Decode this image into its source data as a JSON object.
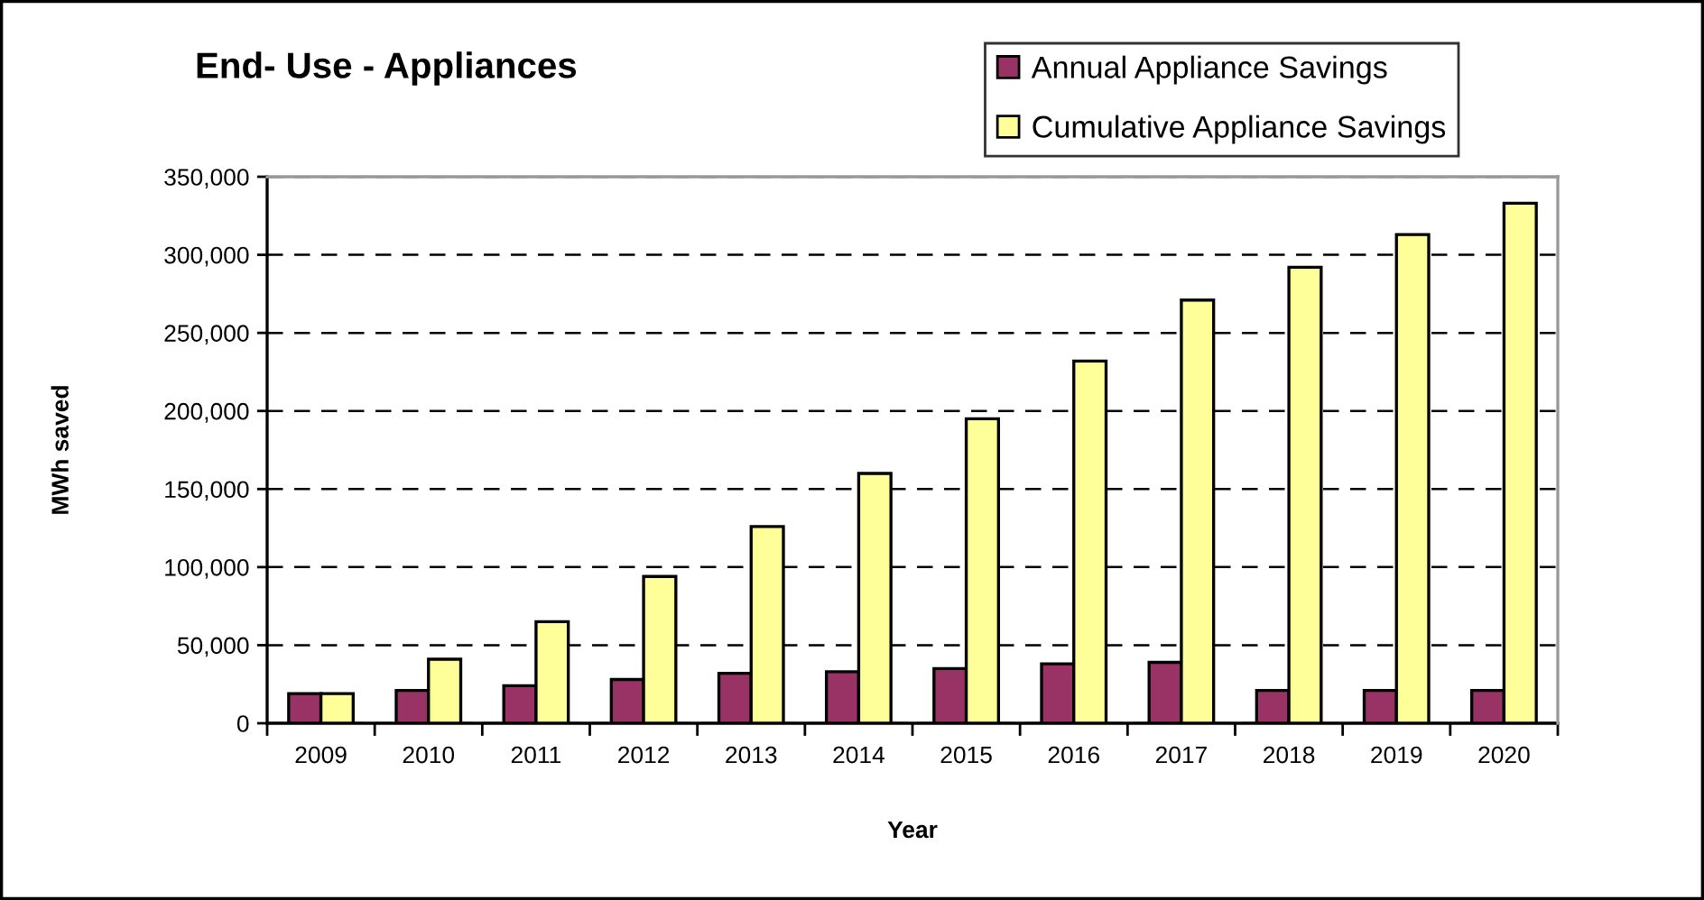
{
  "chart_data": {
    "type": "bar",
    "title": "End- Use - Appliances",
    "xlabel": "Year",
    "ylabel": "MWh saved",
    "categories": [
      "2009",
      "2010",
      "2011",
      "2012",
      "2013",
      "2014",
      "2015",
      "2016",
      "2017",
      "2018",
      "2019",
      "2020"
    ],
    "series": [
      {
        "name": "Annual Appliance Savings",
        "color": "#993366",
        "values": [
          19000,
          21000,
          24000,
          28000,
          32000,
          33000,
          35000,
          38000,
          39000,
          21000,
          21000,
          21000
        ]
      },
      {
        "name": "Cumulative Appliance Savings",
        "color": "#ffff99",
        "values": [
          19000,
          41000,
          65000,
          94000,
          126000,
          160000,
          195000,
          232000,
          271000,
          292000,
          313000,
          333000
        ]
      }
    ],
    "ylim": [
      0,
      350000
    ],
    "yticks": [
      0,
      {
        "value": 50000,
        "label": "50,000"
      },
      {
        "value": 100000,
        "label": "100,000"
      },
      {
        "value": 150000,
        "label": "150,000"
      },
      {
        "value": 200000,
        "label": "200,000"
      },
      {
        "value": 250000,
        "label": "250,000"
      },
      {
        "value": 300000,
        "label": "300,000"
      },
      {
        "value": 350000,
        "label": "350,000"
      }
    ],
    "grid": "y",
    "legend": "top right"
  }
}
